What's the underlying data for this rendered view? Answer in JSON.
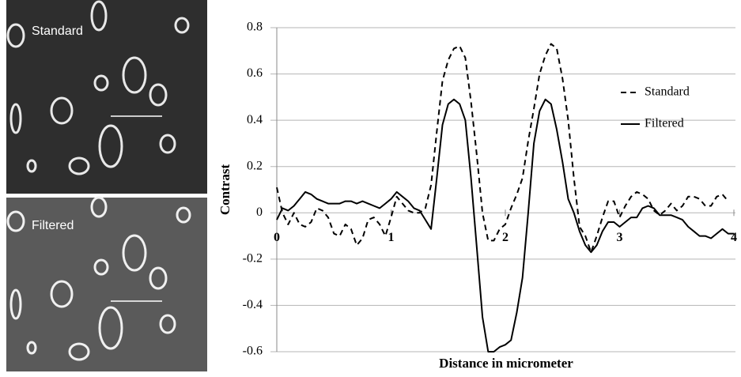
{
  "images": [
    {
      "label": "Standard"
    },
    {
      "label": "Filtered"
    }
  ],
  "chart_data": {
    "type": "line",
    "y_label": "Contrast",
    "x_label": "Distance in micrometer",
    "x": [
      0,
      0.05,
      0.1,
      0.15,
      0.2,
      0.25,
      0.3,
      0.35,
      0.4,
      0.45,
      0.5,
      0.55,
      0.6,
      0.65,
      0.7,
      0.75,
      0.8,
      0.85,
      0.9,
      0.95,
      1,
      1.05,
      1.1,
      1.15,
      1.2,
      1.25,
      1.3,
      1.35,
      1.4,
      1.45,
      1.5,
      1.55,
      1.6,
      1.65,
      1.7,
      1.75,
      1.8,
      1.85,
      1.9,
      1.95,
      2,
      2.05,
      2.1,
      2.15,
      2.2,
      2.25,
      2.3,
      2.35,
      2.4,
      2.45,
      2.5,
      2.55,
      2.6,
      2.65,
      2.7,
      2.75,
      2.8,
      2.85,
      2.9,
      2.95,
      3,
      3.05,
      3.1,
      3.15,
      3.2,
      3.25,
      3.3,
      3.35,
      3.4,
      3.45,
      3.5,
      3.55,
      3.6,
      3.65,
      3.7,
      3.75,
      3.8,
      3.85,
      3.9,
      3.95,
      4
    ],
    "series": [
      {
        "name": "Standard",
        "color": "#000000",
        "line_style": "dashed",
        "values": [
          0.11,
          0.0,
          -0.05,
          0.0,
          -0.05,
          -0.06,
          -0.04,
          0.02,
          0.01,
          -0.02,
          -0.09,
          -0.1,
          -0.05,
          -0.07,
          -0.14,
          -0.11,
          -0.03,
          -0.02,
          -0.05,
          -0.1,
          -0.02,
          0.07,
          0.04,
          0.01,
          0.0,
          0.0,
          0.02,
          0.12,
          0.35,
          0.57,
          0.66,
          0.71,
          0.72,
          0.67,
          0.48,
          0.25,
          0.0,
          -0.12,
          -0.12,
          -0.07,
          -0.05,
          0.02,
          0.08,
          0.15,
          0.31,
          0.45,
          0.6,
          0.68,
          0.73,
          0.71,
          0.58,
          0.4,
          0.15,
          -0.06,
          -0.1,
          -0.17,
          -0.1,
          -0.02,
          0.05,
          0.05,
          -0.02,
          0.03,
          0.07,
          0.09,
          0.08,
          0.06,
          0.01,
          -0.01,
          0.01,
          0.04,
          0.01,
          0.03,
          0.07,
          0.07,
          0.06,
          0.03,
          0.03,
          0.07,
          0.08,
          0.05,
          null
        ]
      },
      {
        "name": "Filtered",
        "color": "#000000",
        "line_style": "solid",
        "values": [
          -0.03,
          0.02,
          0.01,
          0.03,
          0.06,
          0.09,
          0.08,
          0.06,
          0.05,
          0.04,
          0.04,
          0.04,
          0.05,
          0.05,
          0.04,
          0.05,
          0.04,
          0.03,
          0.02,
          0.04,
          0.06,
          0.09,
          0.07,
          0.05,
          0.02,
          0.01,
          -0.03,
          -0.07,
          0.15,
          0.38,
          0.47,
          0.49,
          0.47,
          0.4,
          0.15,
          -0.15,
          -0.45,
          -0.6,
          -0.6,
          -0.58,
          -0.57,
          -0.55,
          -0.43,
          -0.28,
          0.0,
          0.3,
          0.44,
          0.49,
          0.47,
          0.36,
          0.22,
          0.06,
          0.0,
          -0.08,
          -0.14,
          -0.17,
          -0.14,
          -0.08,
          -0.04,
          -0.04,
          -0.06,
          -0.04,
          -0.02,
          -0.02,
          0.02,
          0.03,
          0.02,
          -0.01,
          -0.01,
          -0.01,
          -0.02,
          -0.03,
          -0.06,
          -0.08,
          -0.1,
          -0.1,
          -0.11,
          -0.09,
          -0.07,
          -0.09,
          -0.09
        ]
      }
    ],
    "xlim": [
      0,
      4
    ],
    "xticks": [
      0,
      1,
      2,
      3,
      4
    ],
    "ylim": [
      -0.6,
      0.8
    ],
    "yticks": [
      -0.6,
      -0.4,
      -0.2,
      0,
      0.2,
      0.4,
      0.6,
      0.8
    ],
    "grid": true,
    "legend": "upper right"
  }
}
